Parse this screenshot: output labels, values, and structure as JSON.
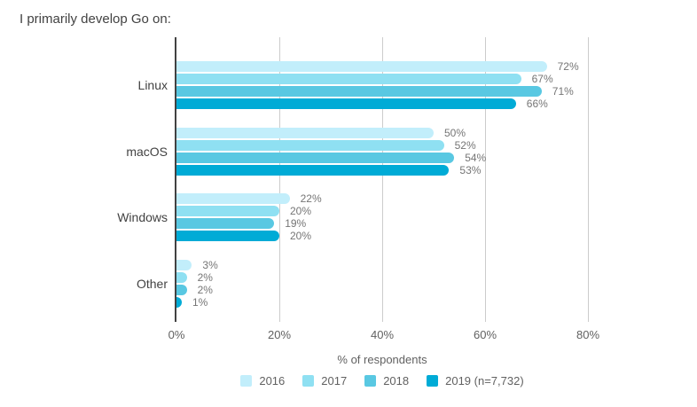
{
  "title": "I primarily develop Go on:",
  "chart_data": {
    "type": "bar",
    "orientation": "horizontal",
    "title": "I primarily develop Go on:",
    "xlabel": "% of respondents",
    "ylabel": "",
    "categories": [
      "Linux",
      "macOS",
      "Windows",
      "Other"
    ],
    "series": [
      {
        "name": "2016",
        "color": "#c2eefb",
        "values": [
          72,
          50,
          22,
          3
        ]
      },
      {
        "name": "2017",
        "color": "#8fe0f2",
        "values": [
          67,
          52,
          20,
          2
        ]
      },
      {
        "name": "2018",
        "color": "#59c8e2",
        "values": [
          71,
          54,
          19,
          2
        ]
      },
      {
        "name": "2019 (n=7,732)",
        "color": "#00abd6",
        "values": [
          66,
          53,
          20,
          1
        ]
      }
    ],
    "value_suffix": "%",
    "xlim": [
      0,
      80
    ],
    "x_tick_values": [
      0,
      20,
      40,
      60,
      80
    ],
    "x_tick_labels": [
      "0%",
      "20%",
      "40%",
      "60%",
      "80%"
    ],
    "grid": true,
    "legend_position": "bottom"
  },
  "colors": {
    "axis_line": "#424242",
    "gridline": "#cccccc",
    "title_text": "#424242",
    "category_text": "#424242",
    "value_label_text": "#757575",
    "tick_text": "#616161",
    "background": "#ffffff"
  }
}
